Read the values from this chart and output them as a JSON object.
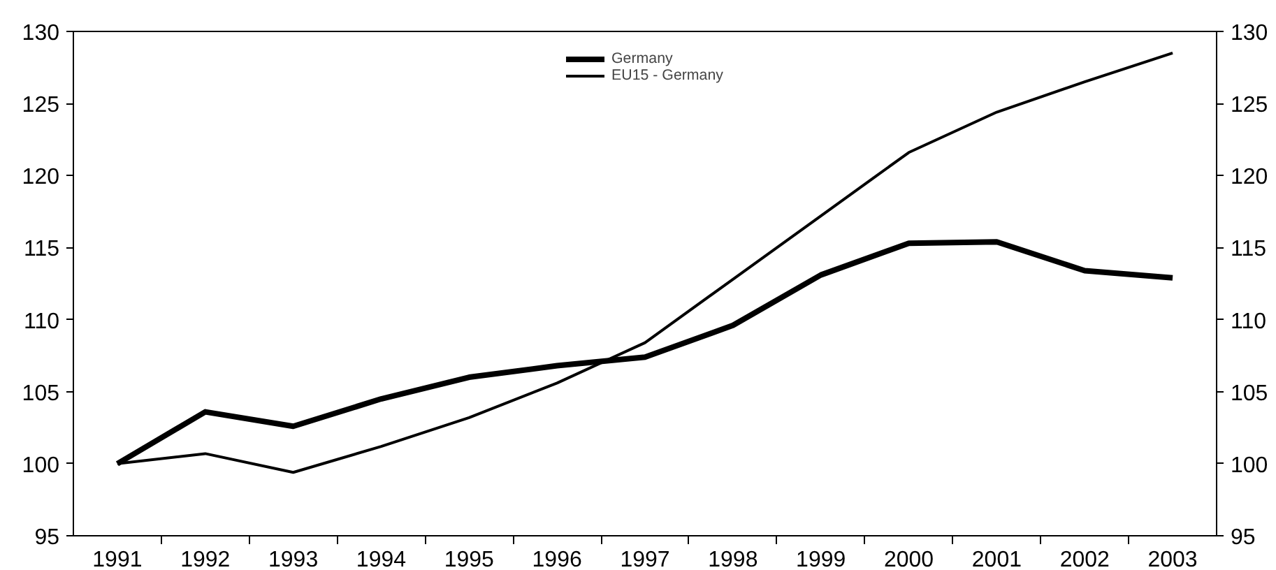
{
  "chart_data": {
    "type": "line",
    "categories": [
      "1991",
      "1992",
      "1993",
      "1994",
      "1995",
      "1996",
      "1997",
      "1998",
      "1999",
      "2000",
      "2001",
      "2002",
      "2003"
    ],
    "series": [
      {
        "name": "Germany",
        "color": "#000000",
        "values": [
          100,
          103.6,
          102.6,
          104.5,
          106.0,
          106.8,
          107.4,
          109.6,
          113.1,
          115.3,
          115.4,
          113.4,
          112.9
        ]
      },
      {
        "name": "EU15 - Germany",
        "color": "#000000",
        "values": [
          100,
          100.7,
          99.4,
          101.2,
          103.2,
          105.6,
          108.4,
          112.8,
          117.2,
          121.6,
          124.4,
          126.5,
          128.5
        ]
      }
    ],
    "ylim": [
      95,
      130
    ],
    "yticks": [
      95,
      100,
      105,
      110,
      115,
      120,
      125,
      130
    ],
    "y2lim": [
      95,
      130
    ],
    "y2ticks": [
      95,
      100,
      105,
      110,
      115,
      120,
      125,
      130
    ],
    "grid": false,
    "legend": "top",
    "marker": "none",
    "line_style": "solid"
  }
}
